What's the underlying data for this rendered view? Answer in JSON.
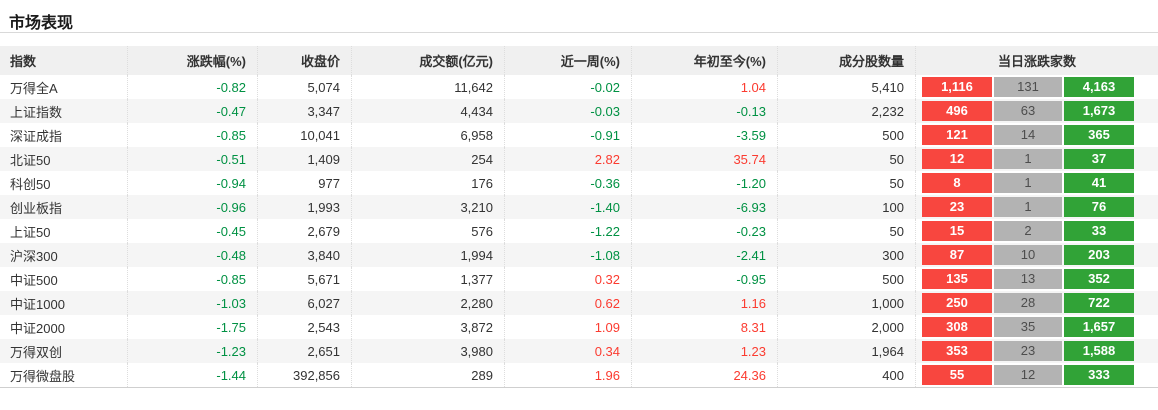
{
  "page": {
    "title": "市场表现"
  },
  "table": {
    "columns": [
      "指数",
      "涨跌幅(%)",
      "收盘价",
      "成交额(亿元)",
      "近一周(%)",
      "年初至今(%)",
      "成分股数量",
      "当日涨跌家数"
    ],
    "rows": [
      {
        "name": "万得全A",
        "chg": "-0.82",
        "close": "5,074",
        "turnover": "11,642",
        "week": "-0.02",
        "ytd": "1.04",
        "count": "5,410",
        "up": "1,116",
        "flat": "131",
        "down": "4,163"
      },
      {
        "name": "上证指数",
        "chg": "-0.47",
        "close": "3,347",
        "turnover": "4,434",
        "week": "-0.03",
        "ytd": "-0.13",
        "count": "2,232",
        "up": "496",
        "flat": "63",
        "down": "1,673"
      },
      {
        "name": "深证成指",
        "chg": "-0.85",
        "close": "10,041",
        "turnover": "6,958",
        "week": "-0.91",
        "ytd": "-3.59",
        "count": "500",
        "up": "121",
        "flat": "14",
        "down": "365"
      },
      {
        "name": "北证50",
        "chg": "-0.51",
        "close": "1,409",
        "turnover": "254",
        "week": "2.82",
        "ytd": "35.74",
        "count": "50",
        "up": "12",
        "flat": "1",
        "down": "37"
      },
      {
        "name": "科创50",
        "chg": "-0.94",
        "close": "977",
        "turnover": "176",
        "week": "-0.36",
        "ytd": "-1.20",
        "count": "50",
        "up": "8",
        "flat": "1",
        "down": "41"
      },
      {
        "name": "创业板指",
        "chg": "-0.96",
        "close": "1,993",
        "turnover": "3,210",
        "week": "-1.40",
        "ytd": "-6.93",
        "count": "100",
        "up": "23",
        "flat": "1",
        "down": "76"
      },
      {
        "name": "上证50",
        "chg": "-0.45",
        "close": "2,679",
        "turnover": "576",
        "week": "-1.22",
        "ytd": "-0.23",
        "count": "50",
        "up": "15",
        "flat": "2",
        "down": "33"
      },
      {
        "name": "沪深300",
        "chg": "-0.48",
        "close": "3,840",
        "turnover": "1,994",
        "week": "-1.08",
        "ytd": "-2.41",
        "count": "300",
        "up": "87",
        "flat": "10",
        "down": "203"
      },
      {
        "name": "中证500",
        "chg": "-0.85",
        "close": "5,671",
        "turnover": "1,377",
        "week": "0.32",
        "ytd": "-0.95",
        "count": "500",
        "up": "135",
        "flat": "13",
        "down": "352"
      },
      {
        "name": "中证1000",
        "chg": "-1.03",
        "close": "6,027",
        "turnover": "2,280",
        "week": "0.62",
        "ytd": "1.16",
        "count": "1,000",
        "up": "250",
        "flat": "28",
        "down": "722"
      },
      {
        "name": "中证2000",
        "chg": "-1.75",
        "close": "2,543",
        "turnover": "3,872",
        "week": "1.09",
        "ytd": "8.31",
        "count": "2,000",
        "up": "308",
        "flat": "35",
        "down": "1,657"
      },
      {
        "name": "万得双创",
        "chg": "-1.23",
        "close": "2,651",
        "turnover": "3,980",
        "week": "0.34",
        "ytd": "1.23",
        "count": "1,964",
        "up": "353",
        "flat": "23",
        "down": "1,588"
      },
      {
        "name": "万得微盘股",
        "chg": "-1.44",
        "close": "392,856",
        "turnover": "289",
        "week": "1.96",
        "ytd": "24.36",
        "count": "400",
        "up": "55",
        "flat": "12",
        "down": "333"
      }
    ]
  },
  "colors": {
    "up_text_red": "#fb3b30",
    "down_text_green": "#009143",
    "advancers_bg": "#f8463f",
    "unchanged_bg": "#b3b3b3",
    "decliners_bg": "#31a337",
    "header_bg": "#f0f0f0",
    "row_alt_bg": "#f5f5f5"
  }
}
